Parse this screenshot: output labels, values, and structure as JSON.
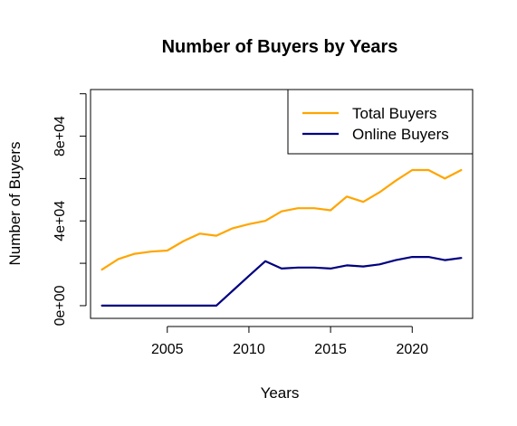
{
  "chart_data": {
    "type": "line",
    "title": "Number of Buyers by Years",
    "xlabel": "Years",
    "ylabel": "Number of Buyers",
    "xlim": [
      2000.3,
      2023.7
    ],
    "ylim": [
      -6000,
      102000
    ],
    "x_ticks": [
      2005,
      2010,
      2015,
      2020
    ],
    "x_tick_labels": [
      "2005",
      "2010",
      "2015",
      "2020"
    ],
    "y_ticks": [
      0,
      20000,
      40000,
      60000,
      80000,
      100000
    ],
    "y_tick_labels": [
      "0e+00",
      "",
      "4e+04",
      "",
      "8e+04",
      ""
    ],
    "grid": false,
    "legend_position": "top-right",
    "x": [
      2001,
      2002,
      2003,
      2004,
      2005,
      2006,
      2007,
      2008,
      2009,
      2010,
      2011,
      2012,
      2013,
      2014,
      2015,
      2016,
      2017,
      2018,
      2019,
      2020,
      2021,
      2022,
      2023
    ],
    "series": [
      {
        "name": "Total Buyers",
        "color": "#FFA500",
        "values": [
          17000,
          22000,
          24500,
          25500,
          26000,
          30500,
          34000,
          33000,
          36500,
          38500,
          40000,
          44500,
          46000,
          46000,
          45000,
          51500,
          49000,
          53500,
          59000,
          64000,
          64000,
          60000,
          64000
        ]
      },
      {
        "name": "Online Buyers",
        "color": "#000080",
        "values": [
          0,
          0,
          0,
          0,
          0,
          0,
          0,
          0,
          7000,
          14000,
          21000,
          17500,
          18000,
          18000,
          17500,
          19000,
          18500,
          19500,
          21500,
          23000,
          23000,
          21500,
          22500
        ]
      }
    ]
  }
}
